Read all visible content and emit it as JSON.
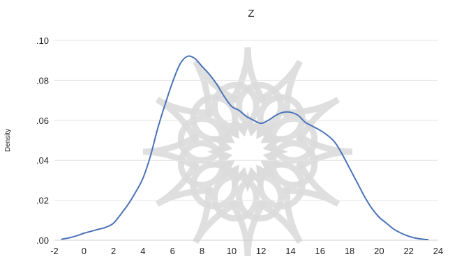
{
  "chart_data": {
    "type": "line",
    "title": "Z",
    "xlabel": "",
    "ylabel": "Density",
    "xlim": [
      -2,
      24
    ],
    "ylim": [
      0,
      0.1
    ],
    "grid": true,
    "legend": "none",
    "x_ticks": [
      {
        "value": -2,
        "label": "-2"
      },
      {
        "value": 0,
        "label": "0"
      },
      {
        "value": 2,
        "label": "2"
      },
      {
        "value": 4,
        "label": "4"
      },
      {
        "value": 6,
        "label": "6"
      },
      {
        "value": 8,
        "label": "8"
      },
      {
        "value": 10,
        "label": "10"
      },
      {
        "value": 12,
        "label": "12"
      },
      {
        "value": 14,
        "label": "14"
      },
      {
        "value": 16,
        "label": "16"
      },
      {
        "value": 18,
        "label": "18"
      },
      {
        "value": 20,
        "label": "20"
      },
      {
        "value": 22,
        "label": "22"
      },
      {
        "value": 24,
        "label": "24"
      }
    ],
    "y_ticks": [
      {
        "value": 0,
        "label": ".00"
      },
      {
        "value": 0.02,
        "label": ".02"
      },
      {
        "value": 0.04,
        "label": ".04"
      },
      {
        "value": 0.06,
        "label": ".06"
      },
      {
        "value": 0.08,
        "label": ".08"
      },
      {
        "value": 0.1,
        "label": ".10"
      }
    ],
    "series": [
      {
        "color": "#4a72b8",
        "x": [
          -1.5,
          -1,
          -0.5,
          0,
          0.5,
          1,
          1.5,
          2,
          2.5,
          3,
          3.5,
          4,
          4.5,
          5,
          5.5,
          6,
          6.5,
          7,
          7.5,
          8,
          8.5,
          9,
          9.5,
          10,
          10.5,
          11,
          11.5,
          12,
          12.5,
          13,
          13.5,
          14,
          14.5,
          15,
          15.5,
          16,
          16.5,
          17,
          17.5,
          18,
          18.5,
          19,
          19.5,
          20,
          20.5,
          21,
          21.5,
          22,
          22.5,
          23,
          23.3
        ],
        "y": [
          0.0005,
          0.0012,
          0.0022,
          0.0035,
          0.0045,
          0.0055,
          0.0065,
          0.0085,
          0.013,
          0.018,
          0.024,
          0.031,
          0.042,
          0.056,
          0.068,
          0.079,
          0.088,
          0.092,
          0.091,
          0.087,
          0.083,
          0.078,
          0.072,
          0.067,
          0.065,
          0.062,
          0.06,
          0.0585,
          0.06,
          0.0625,
          0.064,
          0.064,
          0.0625,
          0.059,
          0.057,
          0.055,
          0.0525,
          0.049,
          0.043,
          0.036,
          0.029,
          0.022,
          0.016,
          0.0115,
          0.0085,
          0.0055,
          0.0035,
          0.002,
          0.001,
          0.0005,
          0.0003
        ]
      }
    ]
  }
}
